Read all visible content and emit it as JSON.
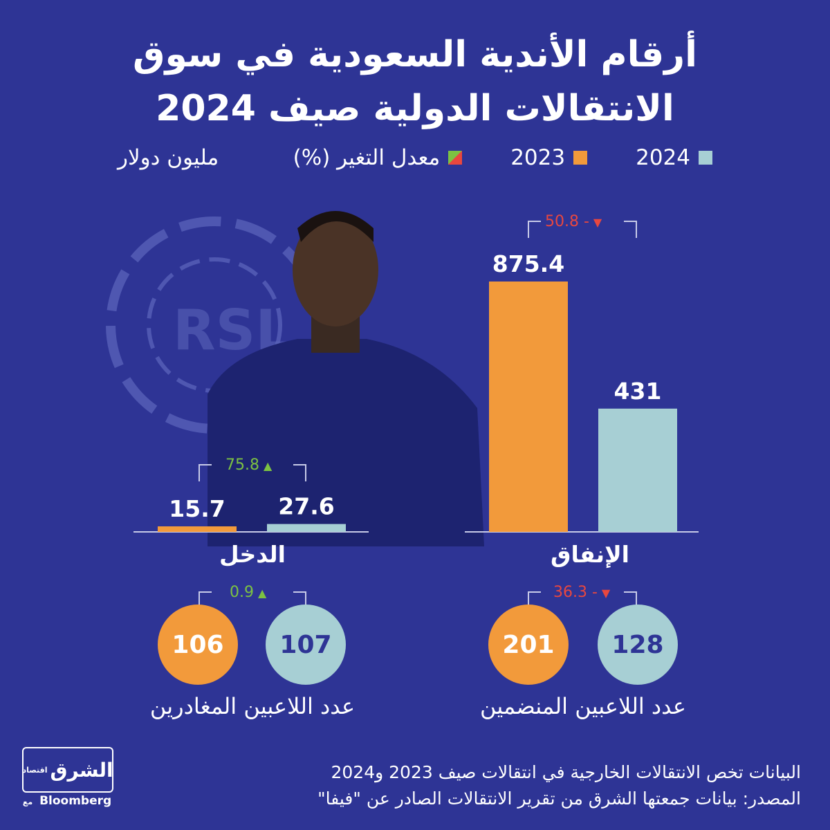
{
  "title": {
    "line1": "أرقام الأندية السعودية في سوق",
    "line2": "الانتقالات الدولية صيف 2024"
  },
  "legend": {
    "y2024": "2024",
    "y2023": "2023",
    "change": "معدل التغير (%)",
    "unit": "مليون دولار"
  },
  "colors": {
    "y2024": "#a7cfd4",
    "y2023": "#f29a3b",
    "negative": "#e8473f",
    "positive": "#7cc242",
    "background": "#2e3495"
  },
  "chart_data": [
    {
      "type": "bar",
      "categories": [
        "الإنفاق",
        "الدخل"
      ],
      "series": [
        {
          "name": "2023",
          "values": [
            875.4,
            15.7
          ]
        },
        {
          "name": "2024",
          "values": [
            431,
            27.6
          ]
        }
      ],
      "value_labels": {
        "spending_2023": "875.4",
        "spending_2024": "431",
        "income_2023": "15.7",
        "income_2024": "27.6"
      },
      "change": [
        {
          "category": "الإنفاق",
          "label": "50.8 -",
          "direction": "down"
        },
        {
          "category": "الدخل",
          "label": "75.8",
          "direction": "up"
        }
      ]
    },
    {
      "type": "table",
      "groups": [
        {
          "label": "عدد اللاعبين المنضمين",
          "v2024": 128,
          "v2023": 201,
          "change": "36.3 -",
          "direction": "down"
        },
        {
          "label": "عدد اللاعبين المغادرين",
          "v2024": 107,
          "v2023": 106,
          "change": "0.9",
          "direction": "up"
        }
      ]
    }
  ],
  "footer": {
    "note": "البيانات تخص الانتقالات الخارجية في انتقالات صيف 2023 و2024",
    "source": "المصدر: بيانات جمعتها الشرق من تقرير الانتقالات الصادر عن \"فيفا\""
  },
  "logo": {
    "name": "الشرق",
    "tag": "اقتصاد",
    "with": "مع",
    "partner": "Bloomberg"
  }
}
